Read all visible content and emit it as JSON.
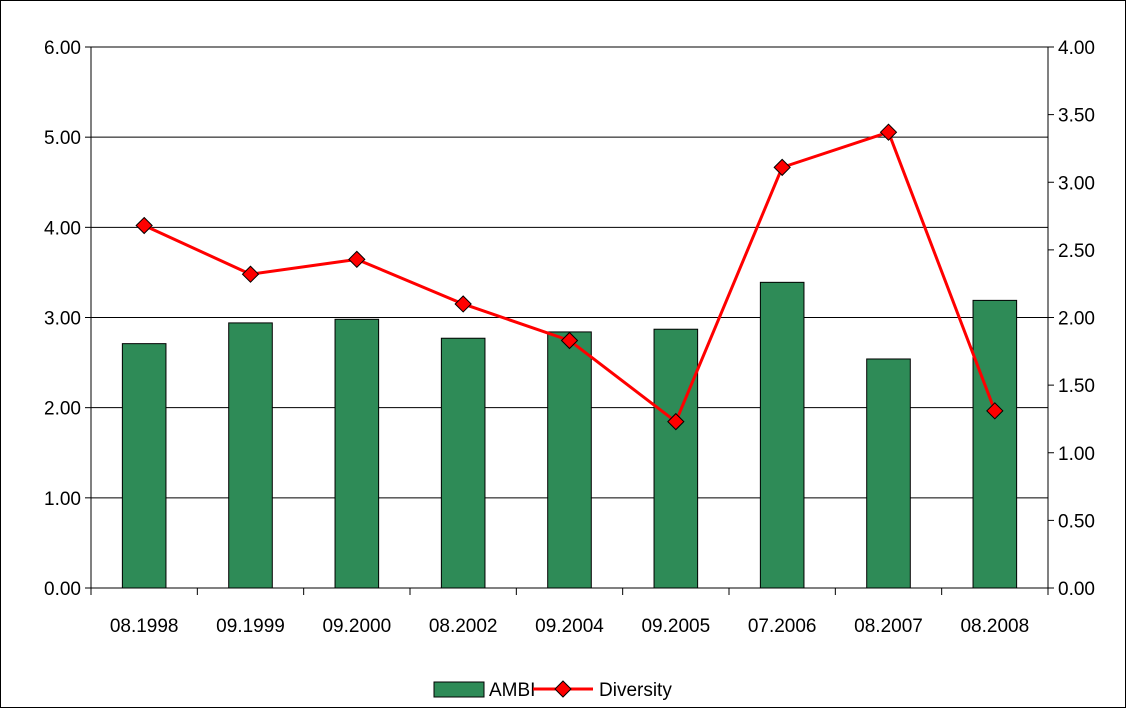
{
  "chart_data": {
    "type": "bar",
    "title": "",
    "xlabel": "",
    "ylabel": "",
    "y2label": "",
    "categories": [
      "08.1998",
      "09.1999",
      "09.2000",
      "08.2002",
      "09.2004",
      "09.2005",
      "07.2006",
      "08.2007",
      "08.2008"
    ],
    "ylim": [
      0,
      6
    ],
    "y_ticks": [
      "0.00",
      "1.00",
      "2.00",
      "3.00",
      "4.00",
      "5.00",
      "6.00"
    ],
    "y2lim": [
      0,
      4
    ],
    "y2_ticks": [
      "0.00",
      "0.50",
      "1.00",
      "1.50",
      "2.00",
      "2.50",
      "3.00",
      "3.50",
      "4.00"
    ],
    "grid": true,
    "legend_position": "bottom",
    "series": [
      {
        "name": "AMBI",
        "type": "bar",
        "axis": "left",
        "color": "#2e8b57",
        "values": [
          2.71,
          2.94,
          2.98,
          2.77,
          2.84,
          2.87,
          3.39,
          2.54,
          3.19
        ]
      },
      {
        "name": "Diversity",
        "type": "line",
        "axis": "right",
        "color": "#ff0000",
        "marker": "diamond",
        "values": [
          2.68,
          2.32,
          2.43,
          2.1,
          1.83,
          1.23,
          3.11,
          3.37,
          1.31
        ]
      }
    ]
  }
}
